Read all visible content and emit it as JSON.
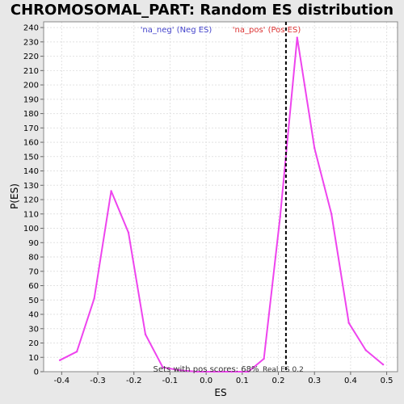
{
  "chart_data": {
    "type": "line",
    "title": "CHROMOSOMAL_PART: Random ES distribution",
    "xlabel": "ES",
    "ylabel": "P(ES)",
    "xlim": [
      -0.45,
      0.53
    ],
    "ylim": [
      0,
      244
    ],
    "xticks": [
      -0.4,
      -0.3,
      -0.2,
      -0.1,
      0.0,
      0.1,
      0.2,
      0.3,
      0.4,
      0.5
    ],
    "xtick_labels": [
      "-0.4",
      "-0.3",
      "-0.2",
      "-0.1",
      "0.0",
      "0.1",
      "0.2",
      "0.3",
      "0.4",
      "0.5"
    ],
    "yticks": [
      0,
      10,
      20,
      30,
      40,
      50,
      60,
      70,
      80,
      90,
      100,
      110,
      120,
      130,
      140,
      150,
      160,
      170,
      180,
      190,
      200,
      210,
      220,
      230,
      240
    ],
    "grid": true,
    "series": [
      {
        "color": "#ee44ee",
        "x": [
          -0.405,
          -0.358,
          -0.31,
          -0.263,
          -0.215,
          -0.168,
          -0.12,
          -0.073,
          -0.025,
          0.022,
          0.07,
          0.117,
          0.16,
          0.205,
          0.252,
          0.3,
          0.347,
          0.395,
          0.442,
          0.49
        ],
        "y": [
          8,
          14,
          51,
          126,
          97,
          26,
          3,
          1,
          0,
          0,
          0,
          0,
          9,
          108,
          233,
          156,
          110,
          34,
          15,
          5
        ]
      }
    ],
    "reference_line": {
      "x": 0.221,
      "color": "#000000",
      "style": "dashed"
    },
    "legend": [
      {
        "label": "'na_neg' (Neg ES)",
        "color": "#4444cc"
      },
      {
        "label": "'na_pos' (Pos ES)",
        "color": "#dd3333"
      }
    ],
    "annotations": {
      "pos_scores": "Sets with pos scores: 68%",
      "real_es": "Real ES 0.2"
    }
  }
}
